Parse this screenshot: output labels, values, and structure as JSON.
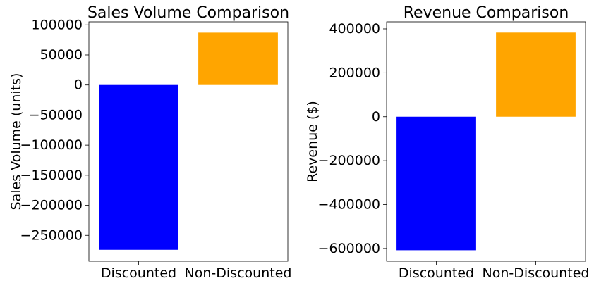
{
  "chart_data": [
    {
      "type": "bar",
      "title": "Sales Volume Comparison",
      "xlabel": "",
      "ylabel": "Sales Volume (units)",
      "categories": [
        "Discounted",
        "Non-Discounted"
      ],
      "values": [
        -274000,
        87000
      ],
      "colors": [
        "#0000ff",
        "#ffa500"
      ],
      "ylim": [
        -293000,
        105000
      ],
      "yticks": [
        100000,
        50000,
        0,
        -50000,
        -100000,
        -150000,
        -200000,
        -250000
      ],
      "ytick_labels": [
        "100000",
        "50000",
        "0",
        "−50000",
        "−100000",
        "−150000",
        "−200000",
        "−250000"
      ],
      "grid": false
    },
    {
      "type": "bar",
      "title": "Revenue Comparison",
      "xlabel": "",
      "ylabel": "Revenue ($)",
      "categories": [
        "Discounted",
        "Non-Discounted"
      ],
      "values": [
        -608000,
        383000
      ],
      "colors": [
        "#0000ff",
        "#ffa500"
      ],
      "ylim": [
        -658000,
        432000
      ],
      "yticks": [
        400000,
        200000,
        0,
        -200000,
        -400000,
        -600000
      ],
      "ytick_labels": [
        "400000",
        "200000",
        "0",
        "−200000",
        "−400000",
        "−600000"
      ],
      "grid": false
    }
  ]
}
